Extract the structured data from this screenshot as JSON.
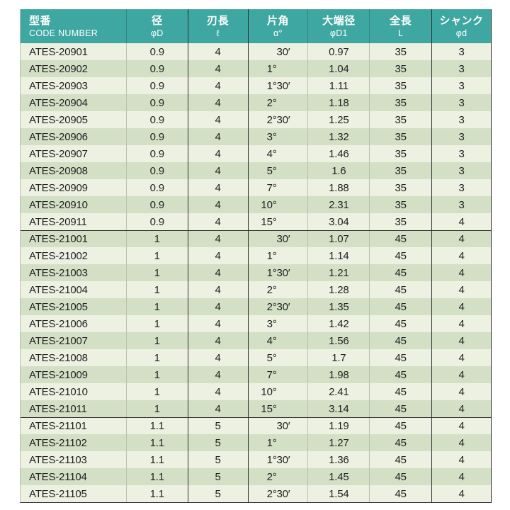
{
  "colors": {
    "header_bg": "#3fa7a1",
    "header_text": "#ffffff",
    "row_light": "#edf1e1",
    "row_dark": "#d3e0c6",
    "grid_light": "#b7c0ab",
    "grid_dark": "#2f2f2f",
    "text": "#222222"
  },
  "table": {
    "columns": [
      {
        "ja": "型番",
        "sub": "CODE NUMBER"
      },
      {
        "ja": "径",
        "sub": "φD"
      },
      {
        "ja": "刃長",
        "sub": "ℓ"
      },
      {
        "ja": "片角",
        "sub": "α°"
      },
      {
        "ja": "大端径",
        "sub": "φD1"
      },
      {
        "ja": "全長",
        "sub": "L"
      },
      {
        "ja": "シャンク",
        "sub": "φd"
      }
    ],
    "rows": [
      {
        "code": "ATES-20901",
        "dia": "0.9",
        "flute": "4",
        "alpha": {
          "deg": "",
          "min": "30′"
        },
        "d1": "0.97",
        "oal": "35",
        "shank": "3"
      },
      {
        "code": "ATES-20902",
        "dia": "0.9",
        "flute": "4",
        "alpha": {
          "deg": "1°",
          "min": ""
        },
        "d1": "1.04",
        "oal": "35",
        "shank": "3"
      },
      {
        "code": "ATES-20903",
        "dia": "0.9",
        "flute": "4",
        "alpha": {
          "deg": "1°",
          "min": "30′"
        },
        "d1": "1.11",
        "oal": "35",
        "shank": "3"
      },
      {
        "code": "ATES-20904",
        "dia": "0.9",
        "flute": "4",
        "alpha": {
          "deg": "2°",
          "min": ""
        },
        "d1": "1.18",
        "oal": "35",
        "shank": "3"
      },
      {
        "code": "ATES-20905",
        "dia": "0.9",
        "flute": "4",
        "alpha": {
          "deg": "2°",
          "min": "30′"
        },
        "d1": "1.25",
        "oal": "35",
        "shank": "3"
      },
      {
        "code": "ATES-20906",
        "dia": "0.9",
        "flute": "4",
        "alpha": {
          "deg": "3°",
          "min": ""
        },
        "d1": "1.32",
        "oal": "35",
        "shank": "3"
      },
      {
        "code": "ATES-20907",
        "dia": "0.9",
        "flute": "4",
        "alpha": {
          "deg": "4°",
          "min": ""
        },
        "d1": "1.46",
        "oal": "35",
        "shank": "3"
      },
      {
        "code": "ATES-20908",
        "dia": "0.9",
        "flute": "4",
        "alpha": {
          "deg": "5°",
          "min": ""
        },
        "d1": "1.6",
        "oal": "35",
        "shank": "3"
      },
      {
        "code": "ATES-20909",
        "dia": "0.9",
        "flute": "4",
        "alpha": {
          "deg": "7°",
          "min": ""
        },
        "d1": "1.88",
        "oal": "35",
        "shank": "3"
      },
      {
        "code": "ATES-20910",
        "dia": "0.9",
        "flute": "4",
        "alpha": {
          "deg": "10°",
          "min": ""
        },
        "d1": "2.31",
        "oal": "35",
        "shank": "3"
      },
      {
        "code": "ATES-20911",
        "dia": "0.9",
        "flute": "4",
        "alpha": {
          "deg": "15°",
          "min": ""
        },
        "d1": "3.04",
        "oal": "35",
        "shank": "4"
      },
      {
        "code": "ATES-21001",
        "dia": "1",
        "flute": "4",
        "alpha": {
          "deg": "",
          "min": "30′"
        },
        "d1": "1.07",
        "oal": "45",
        "shank": "4"
      },
      {
        "code": "ATES-21002",
        "dia": "1",
        "flute": "4",
        "alpha": {
          "deg": "1°",
          "min": ""
        },
        "d1": "1.14",
        "oal": "45",
        "shank": "4"
      },
      {
        "code": "ATES-21003",
        "dia": "1",
        "flute": "4",
        "alpha": {
          "deg": "1°",
          "min": "30′"
        },
        "d1": "1.21",
        "oal": "45",
        "shank": "4"
      },
      {
        "code": "ATES-21004",
        "dia": "1",
        "flute": "4",
        "alpha": {
          "deg": "2°",
          "min": ""
        },
        "d1": "1.28",
        "oal": "45",
        "shank": "4"
      },
      {
        "code": "ATES-21005",
        "dia": "1",
        "flute": "4",
        "alpha": {
          "deg": "2°",
          "min": "30′"
        },
        "d1": "1.35",
        "oal": "45",
        "shank": "4"
      },
      {
        "code": "ATES-21006",
        "dia": "1",
        "flute": "4",
        "alpha": {
          "deg": "3°",
          "min": ""
        },
        "d1": "1.42",
        "oal": "45",
        "shank": "4"
      },
      {
        "code": "ATES-21007",
        "dia": "1",
        "flute": "4",
        "alpha": {
          "deg": "4°",
          "min": ""
        },
        "d1": "1.56",
        "oal": "45",
        "shank": "4"
      },
      {
        "code": "ATES-21008",
        "dia": "1",
        "flute": "4",
        "alpha": {
          "deg": "5°",
          "min": ""
        },
        "d1": "1.7",
        "oal": "45",
        "shank": "4"
      },
      {
        "code": "ATES-21009",
        "dia": "1",
        "flute": "4",
        "alpha": {
          "deg": "7°",
          "min": ""
        },
        "d1": "1.98",
        "oal": "45",
        "shank": "4"
      },
      {
        "code": "ATES-21010",
        "dia": "1",
        "flute": "4",
        "alpha": {
          "deg": "10°",
          "min": ""
        },
        "d1": "2.41",
        "oal": "45",
        "shank": "4"
      },
      {
        "code": "ATES-21011",
        "dia": "1",
        "flute": "4",
        "alpha": {
          "deg": "15°",
          "min": ""
        },
        "d1": "3.14",
        "oal": "45",
        "shank": "4"
      },
      {
        "code": "ATES-21101",
        "dia": "1.1",
        "flute": "5",
        "alpha": {
          "deg": "",
          "min": "30′"
        },
        "d1": "1.19",
        "oal": "45",
        "shank": "4"
      },
      {
        "code": "ATES-21102",
        "dia": "1.1",
        "flute": "5",
        "alpha": {
          "deg": "1°",
          "min": ""
        },
        "d1": "1.27",
        "oal": "45",
        "shank": "4"
      },
      {
        "code": "ATES-21103",
        "dia": "1.1",
        "flute": "5",
        "alpha": {
          "deg": "1°",
          "min": "30′"
        },
        "d1": "1.36",
        "oal": "45",
        "shank": "4"
      },
      {
        "code": "ATES-21104",
        "dia": "1.1",
        "flute": "5",
        "alpha": {
          "deg": "2°",
          "min": ""
        },
        "d1": "1.45",
        "oal": "45",
        "shank": "4"
      },
      {
        "code": "ATES-21105",
        "dia": "1.1",
        "flute": "5",
        "alpha": {
          "deg": "2°",
          "min": "30′"
        },
        "d1": "1.54",
        "oal": "45",
        "shank": "4"
      }
    ]
  }
}
